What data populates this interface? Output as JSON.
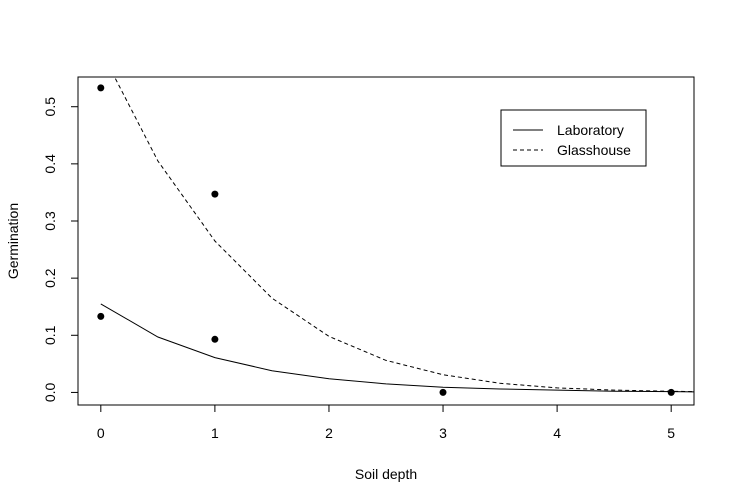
{
  "chart_data": {
    "type": "scatter",
    "title": "",
    "xlabel": "Soil depth",
    "ylabel": "Germination",
    "xlim": [
      -0.2,
      5.2
    ],
    "ylim": [
      -0.022,
      0.552
    ],
    "x_ticks": [
      0,
      1,
      2,
      3,
      4,
      5
    ],
    "x_tick_labels": [
      "0",
      "1",
      "2",
      "3",
      "4",
      "5"
    ],
    "y_ticks": [
      0.0,
      0.1,
      0.2,
      0.3,
      0.4,
      0.5
    ],
    "y_tick_labels": [
      "0.0",
      "0.1",
      "0.2",
      "0.3",
      "0.4",
      "0.5"
    ],
    "grid": false,
    "legend_position": "top-right",
    "points": {
      "x": [
        0,
        0,
        1,
        1,
        3,
        5
      ],
      "y": [
        0.533,
        0.133,
        0.347,
        0.093,
        0.0,
        0.0
      ]
    },
    "series": [
      {
        "name": "Laboratory",
        "line_style": "solid",
        "color": "#000000",
        "x": [
          0,
          0.5,
          1,
          1.5,
          2,
          2.5,
          3,
          3.5,
          4,
          4.5,
          5,
          5.2
        ],
        "y": [
          0.155,
          0.097,
          0.061,
          0.038,
          0.024,
          0.015,
          0.009,
          0.006,
          0.004,
          0.002,
          0.0015,
          0.001
        ]
      },
      {
        "name": "Glasshouse",
        "line_style": "dashed",
        "color": "#000000",
        "x": [
          0.1,
          0.5,
          1,
          1.5,
          2,
          2.5,
          3,
          3.5,
          4,
          4.5,
          5,
          5.2
        ],
        "y": [
          0.56,
          0.405,
          0.265,
          0.165,
          0.098,
          0.056,
          0.031,
          0.016,
          0.008,
          0.004,
          0.002,
          0.0015
        ]
      }
    ]
  }
}
